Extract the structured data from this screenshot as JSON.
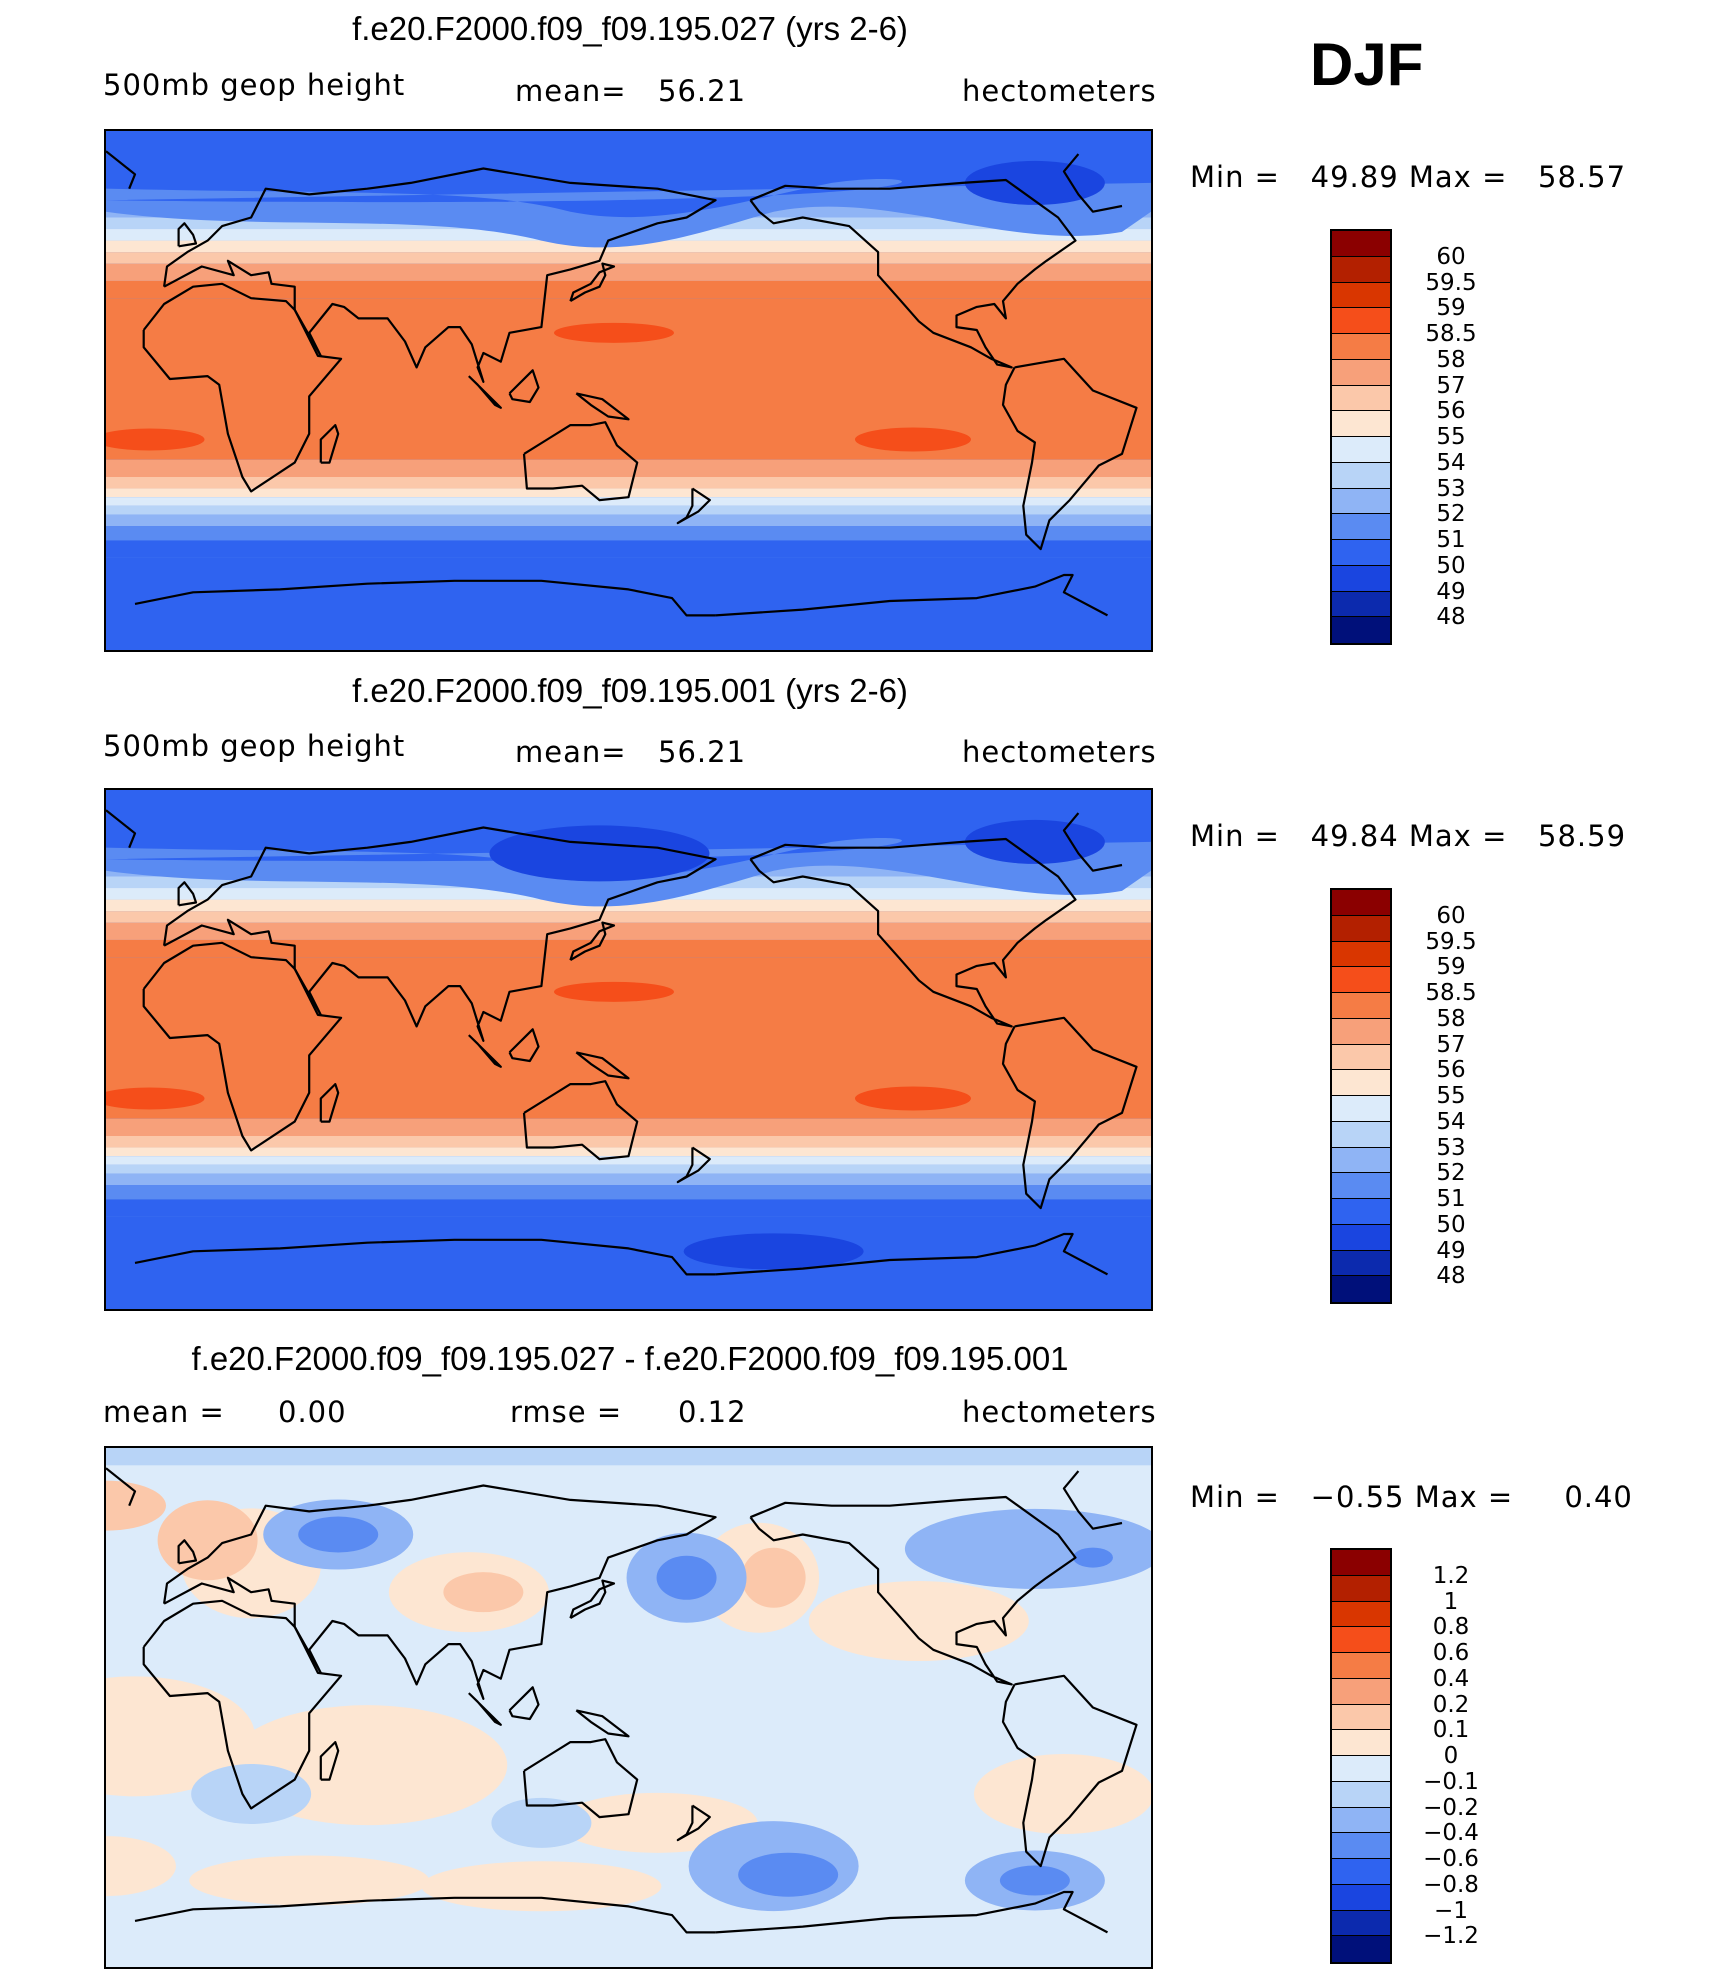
{
  "season": "DJF",
  "panels": [
    {
      "title": "f.e20.F2000.f09_f09.195.027 (yrs 2-6)",
      "left": "500mb geop height",
      "center_label": "mean=",
      "center_value": "56.21",
      "right": "hectometers",
      "min_label": "Min =",
      "min_value": "49.89",
      "max_label": "Max =",
      "max_value": "58.57",
      "variant": "a"
    },
    {
      "title": "f.e20.F2000.f09_f09.195.001 (yrs 2-6)",
      "left": "500mb geop height",
      "center_label": "mean=",
      "center_value": "56.21",
      "right": "hectometers",
      "min_label": "Min =",
      "min_value": "49.84",
      "max_label": "Max =",
      "max_value": "58.59",
      "variant": "b"
    },
    {
      "title": "f.e20.F2000.f09_f09.195.027 - f.e20.F2000.f09_f09.195.001",
      "left_label": "mean =",
      "left_value": "0.00",
      "center_label": "rmse =",
      "center_value": "0.12",
      "right": "hectometers",
      "min_label": "Min =",
      "min_value": "−0.55",
      "max_label": "Max =",
      "max_value": "0.40",
      "variant": "diff"
    }
  ],
  "colorbars": {
    "height": {
      "labels": [
        "60",
        "59.5",
        "59",
        "58.5",
        "58",
        "57",
        "56",
        "55",
        "54",
        "53",
        "52",
        "51",
        "50",
        "49",
        "48"
      ],
      "colors": [
        "#8b0000",
        "#b32000",
        "#d93600",
        "#f54e1a",
        "#f57c45",
        "#f7a07a",
        "#fbc8aa",
        "#fde6d2",
        "#dcebfa",
        "#b8d4f7",
        "#8fb4f5",
        "#5a8bf2",
        "#2f63f0",
        "#1a45e0",
        "#0c2aae",
        "#00107a"
      ]
    },
    "diff": {
      "labels": [
        "1.2",
        "1",
        "0.8",
        "0.6",
        "0.4",
        "0.2",
        "0.1",
        "0",
        "−0.1",
        "−0.2",
        "−0.4",
        "−0.6",
        "−0.8",
        "−1",
        "−1.2"
      ],
      "colors": [
        "#8b0000",
        "#b32000",
        "#d93600",
        "#f54e1a",
        "#f57c45",
        "#f7a07a",
        "#fbc8aa",
        "#fde6d2",
        "#dcebfa",
        "#b8d4f7",
        "#8fb4f5",
        "#5a8bf2",
        "#2f63f0",
        "#1a45e0",
        "#0c2aae",
        "#00107a"
      ]
    }
  },
  "map_data": {
    "type": "contour-map",
    "projection": "cylindrical-equidistant",
    "central_longitude": 150,
    "variable": "500mb geopotential height",
    "units": "hectometers"
  }
}
